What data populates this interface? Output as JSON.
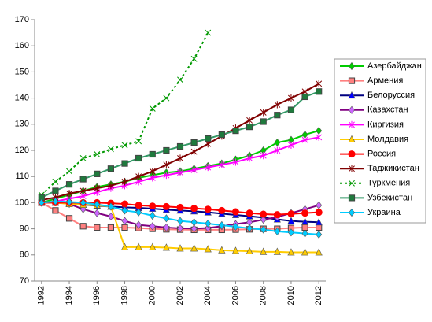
{
  "chart_data": {
    "type": "line",
    "x": [
      1992,
      1993,
      1994,
      1995,
      1996,
      1997,
      1998,
      1999,
      2000,
      2001,
      2002,
      2003,
      2004,
      2005,
      2006,
      2007,
      2008,
      2009,
      2010,
      2011,
      2012
    ],
    "xlim": [
      1991.5,
      2012.5
    ],
    "xticks": [
      1992,
      1994,
      1996,
      1998,
      2000,
      2002,
      2004,
      2006,
      2008,
      2010,
      2012
    ],
    "ylim": [
      70,
      170
    ],
    "yticks": [
      70,
      80,
      90,
      100,
      110,
      120,
      130,
      140,
      150,
      160,
      170
    ],
    "grid": false,
    "legend": "right",
    "series": [
      {
        "name": "Азербайджан",
        "color": "#00cc00",
        "marker": "diamond",
        "values": [
          100,
          101.5,
          103,
          104.5,
          106,
          107,
          108,
          109.5,
          110.5,
          111.5,
          112,
          113,
          114,
          115,
          116.5,
          118,
          120,
          123,
          124,
          126,
          127.5
        ]
      },
      {
        "name": "Армения",
        "color": "#ff8080",
        "marker": "square",
        "values": [
          100,
          97,
          94,
          91,
          90.5,
          90.5,
          90.5,
          90.3,
          90,
          89.8,
          89.7,
          89.6,
          89.6,
          89.6,
          89.7,
          89.8,
          90,
          90,
          90.3,
          90.5,
          90.5
        ]
      },
      {
        "name": "Белоруссия",
        "color": "#000080",
        "marker": "triangle",
        "markerColor": "#0000ff",
        "values": [
          100,
          100,
          99.7,
          99.2,
          98.8,
          98.5,
          98.2,
          98,
          97.7,
          97.3,
          97,
          96.7,
          96.3,
          95.8,
          95.3,
          94.8,
          94.3,
          93.6,
          93,
          92.7,
          92.5
        ]
      },
      {
        "name": "Казахстан",
        "color": "#800080",
        "marker": "diamond",
        "markerColor": "#cc66ff",
        "values": [
          100,
          100.2,
          99.5,
          97.5,
          96,
          94.7,
          93,
          91.5,
          91,
          90.5,
          90.2,
          90.1,
          90.3,
          91,
          91.8,
          92.5,
          93.5,
          94.5,
          96,
          97.5,
          99
        ]
      },
      {
        "name": "Киргизия",
        "color": "#ff00ff",
        "marker": "star",
        "values": [
          100,
          100.5,
          101.5,
          102.5,
          104,
          105.5,
          106.5,
          108,
          109.5,
          110.5,
          111.5,
          112.5,
          113.5,
          114.5,
          115.5,
          117,
          118,
          120,
          122,
          124,
          125
        ]
      },
      {
        "name": "Молдавия",
        "color": "#ffcc00",
        "marker": "triangle",
        "values": [
          100,
          100,
          99.5,
          99.2,
          99,
          98.5,
          83,
          83,
          83,
          82.8,
          82.5,
          82.5,
          82.2,
          81.8,
          81.6,
          81.4,
          81.2,
          81.2,
          81,
          81,
          81
        ]
      },
      {
        "name": "Россия",
        "color": "#ff0000",
        "marker": "circle",
        "values": [
          100,
          100,
          100,
          100,
          100,
          99.8,
          99.5,
          99,
          98.7,
          98.5,
          98.2,
          97.8,
          97.5,
          97,
          96.5,
          96,
          95.6,
          95.4,
          95.7,
          96,
          96.3
        ]
      },
      {
        "name": "Таджикистан",
        "color": "#800000",
        "marker": "star",
        "values": [
          101,
          102,
          103.5,
          104.5,
          105.5,
          106.5,
          108,
          110,
          112,
          114.5,
          117,
          119.5,
          122.5,
          125.5,
          128.5,
          131.5,
          134.5,
          137.5,
          140,
          142.5,
          145.5
        ]
      },
      {
        "name": "Туркмения",
        "color": "#009900",
        "marker": "x",
        "dashed": true,
        "values": [
          103,
          108,
          112,
          117,
          118.5,
          120.5,
          122,
          123.5,
          136,
          140,
          147,
          155,
          165,
          null,
          null,
          null,
          null,
          null,
          null,
          null,
          null
        ]
      },
      {
        "name": "Узбекистан",
        "color": "#339966",
        "marker": "square",
        "markerColor": "#1f7a3d",
        "values": [
          102,
          104.5,
          107,
          109,
          111,
          113,
          115,
          117,
          118.5,
          120,
          121.5,
          123,
          124.5,
          126,
          127.5,
          129,
          131,
          133.5,
          135.5,
          140.5,
          142.5
        ]
      },
      {
        "name": "Украина",
        "color": "#00ccff",
        "marker": "diamond",
        "values": [
          100,
          100.5,
          100.3,
          100,
          99.3,
          98.5,
          97,
          96.3,
          95,
          94,
          93,
          92.5,
          92,
          91.4,
          90.8,
          90.2,
          89.7,
          89,
          88.6,
          88.2,
          87.8
        ]
      }
    ]
  }
}
